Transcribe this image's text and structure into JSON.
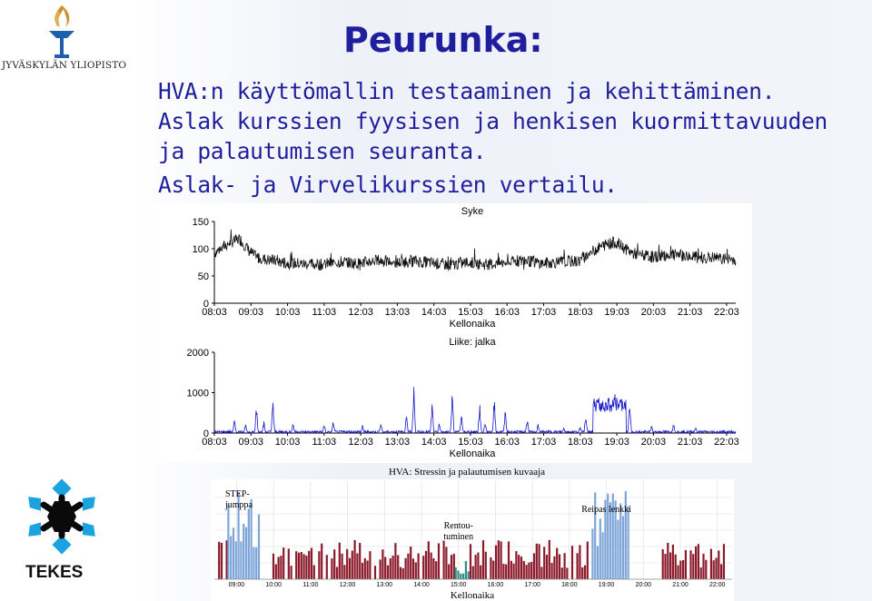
{
  "header": {
    "university_name": "JYVÄSKYLÄN YLIOPISTO",
    "title": "Peurunka:",
    "lines": [
      "HVA:n käyttömallin testaaminen ja kehittäminen.",
      "Aslak kurssien fyysisen ja henkisen kuormittavuuden",
      "ja palautumisen seuranta.",
      "Aslak- ja Virvelikurssien vertailu."
    ]
  },
  "footer": {
    "logo_text": "TEKES"
  },
  "colors": {
    "title": "#1f1f9e",
    "hr_line": "#111111",
    "motion_line": "#1a1acc",
    "stress_bar": "#8b1a2b",
    "recovery_bar": "#7ea6d8",
    "relax_bar": "#2f8f80"
  },
  "icons": {
    "university_logo": "torch-icon",
    "tekes_logo": "snowflake-icon"
  },
  "chart_data": [
    {
      "type": "line",
      "title": "Syke",
      "xlabel": "Kellonaika",
      "ylabel": "",
      "x_ticks": [
        "08:03",
        "09:03",
        "10:03",
        "11:03",
        "12:03",
        "13:03",
        "14:03",
        "15:03",
        "16:03",
        "17:03",
        "18:03",
        "19:03",
        "20:03",
        "21:03",
        "22:03"
      ],
      "y_ticks": [
        0,
        50,
        100,
        150
      ],
      "ylim": [
        0,
        150
      ],
      "xlim_hours": [
        8.05,
        22.3
      ],
      "series": [
        {
          "x_hours": [
            8.05,
            8.3,
            8.5,
            8.75,
            9.0,
            9.2,
            9.5,
            10.0,
            10.5,
            11.0,
            11.5,
            12.0,
            12.5,
            13.0,
            13.5,
            14.0,
            14.5,
            15.0,
            15.5,
            16.0,
            16.5,
            17.0,
            17.5,
            18.0,
            18.5,
            18.75,
            19.0,
            19.5,
            20.0,
            20.5,
            21.0,
            21.5,
            22.0,
            22.3
          ],
          "values": [
            92,
            104,
            112,
            118,
            96,
            84,
            80,
            74,
            72,
            71,
            76,
            73,
            79,
            74,
            78,
            74,
            70,
            75,
            71,
            74,
            79,
            73,
            76,
            77,
            100,
            108,
            112,
            91,
            85,
            89,
            86,
            84,
            82,
            80
          ]
        }
      ]
    },
    {
      "type": "line",
      "title": "Liike: jalka",
      "xlabel": "Kellonaika",
      "ylabel": "",
      "x_ticks": [
        "08:03",
        "09:03",
        "10:03",
        "11:03",
        "12:03",
        "13:03",
        "14:03",
        "15:03",
        "16:03",
        "17:03",
        "18:03",
        "19:03",
        "20:03",
        "21:03",
        "22:03"
      ],
      "y_ticks": [
        0,
        1000,
        2000
      ],
      "ylim": [
        0,
        2000
      ],
      "xlim_hours": [
        8.05,
        22.3
      ],
      "series": [
        {
          "peaks_x_hours": [
            8.6,
            8.9,
            9.2,
            9.4,
            9.65,
            10.2,
            11.05,
            11.3,
            12.1,
            12.6,
            13.3,
            13.5,
            14.0,
            14.2,
            14.55,
            14.8,
            15.3,
            15.45,
            15.7,
            16.0,
            16.6,
            16.9,
            17.6,
            18.05,
            18.2,
            18.55,
            19.0,
            19.4,
            20.0,
            20.6,
            21.2
          ],
          "peaks_values": [
            380,
            250,
            720,
            320,
            880,
            300,
            250,
            330,
            200,
            280,
            550,
            1350,
            760,
            300,
            1150,
            500,
            800,
            350,
            950,
            600,
            400,
            250,
            150,
            200,
            450,
            950,
            1000,
            900,
            200,
            250,
            150
          ],
          "active_block_hours": [
            18.4,
            19.3
          ],
          "active_block_level": 700
        }
      ]
    },
    {
      "type": "bar",
      "title": "HVA: Stressin ja palautumisen kuvaaja",
      "xlabel": "Kellonaika",
      "x_ticks": [
        "09:00",
        "10:00",
        "11:00",
        "12:00",
        "13:00",
        "14:00",
        "15:00",
        "16:00",
        "17:00",
        "18:00",
        "19:00",
        "20:00",
        "21:00",
        "22:00"
      ],
      "annotations": [
        {
          "text": "STEP-",
          "hour": 8.8
        },
        {
          "text": "jumppa",
          "hour": 8.8
        },
        {
          "text": "Rentou-",
          "hour": 15.0
        },
        {
          "text": "tuminen",
          "hour": 15.0
        },
        {
          "text": "Reipas lenkki",
          "hour": 19.0
        }
      ],
      "series": [
        {
          "name": "stress",
          "segments_hours": [
            [
              8.5,
              8.75
            ],
            [
              9.9,
              14.9
            ],
            [
              15.3,
              18.6
            ],
            [
              20.5,
              22.2
            ]
          ],
          "level": 0.32
        },
        {
          "name": "recovery",
          "segments_hours": [
            [
              8.75,
              9.6
            ],
            [
              18.6,
              19.6
            ]
          ],
          "level": 0.8
        },
        {
          "name": "relax",
          "segments_hours": [
            [
              14.9,
              15.25
            ]
          ],
          "level": 0.15
        }
      ]
    }
  ]
}
